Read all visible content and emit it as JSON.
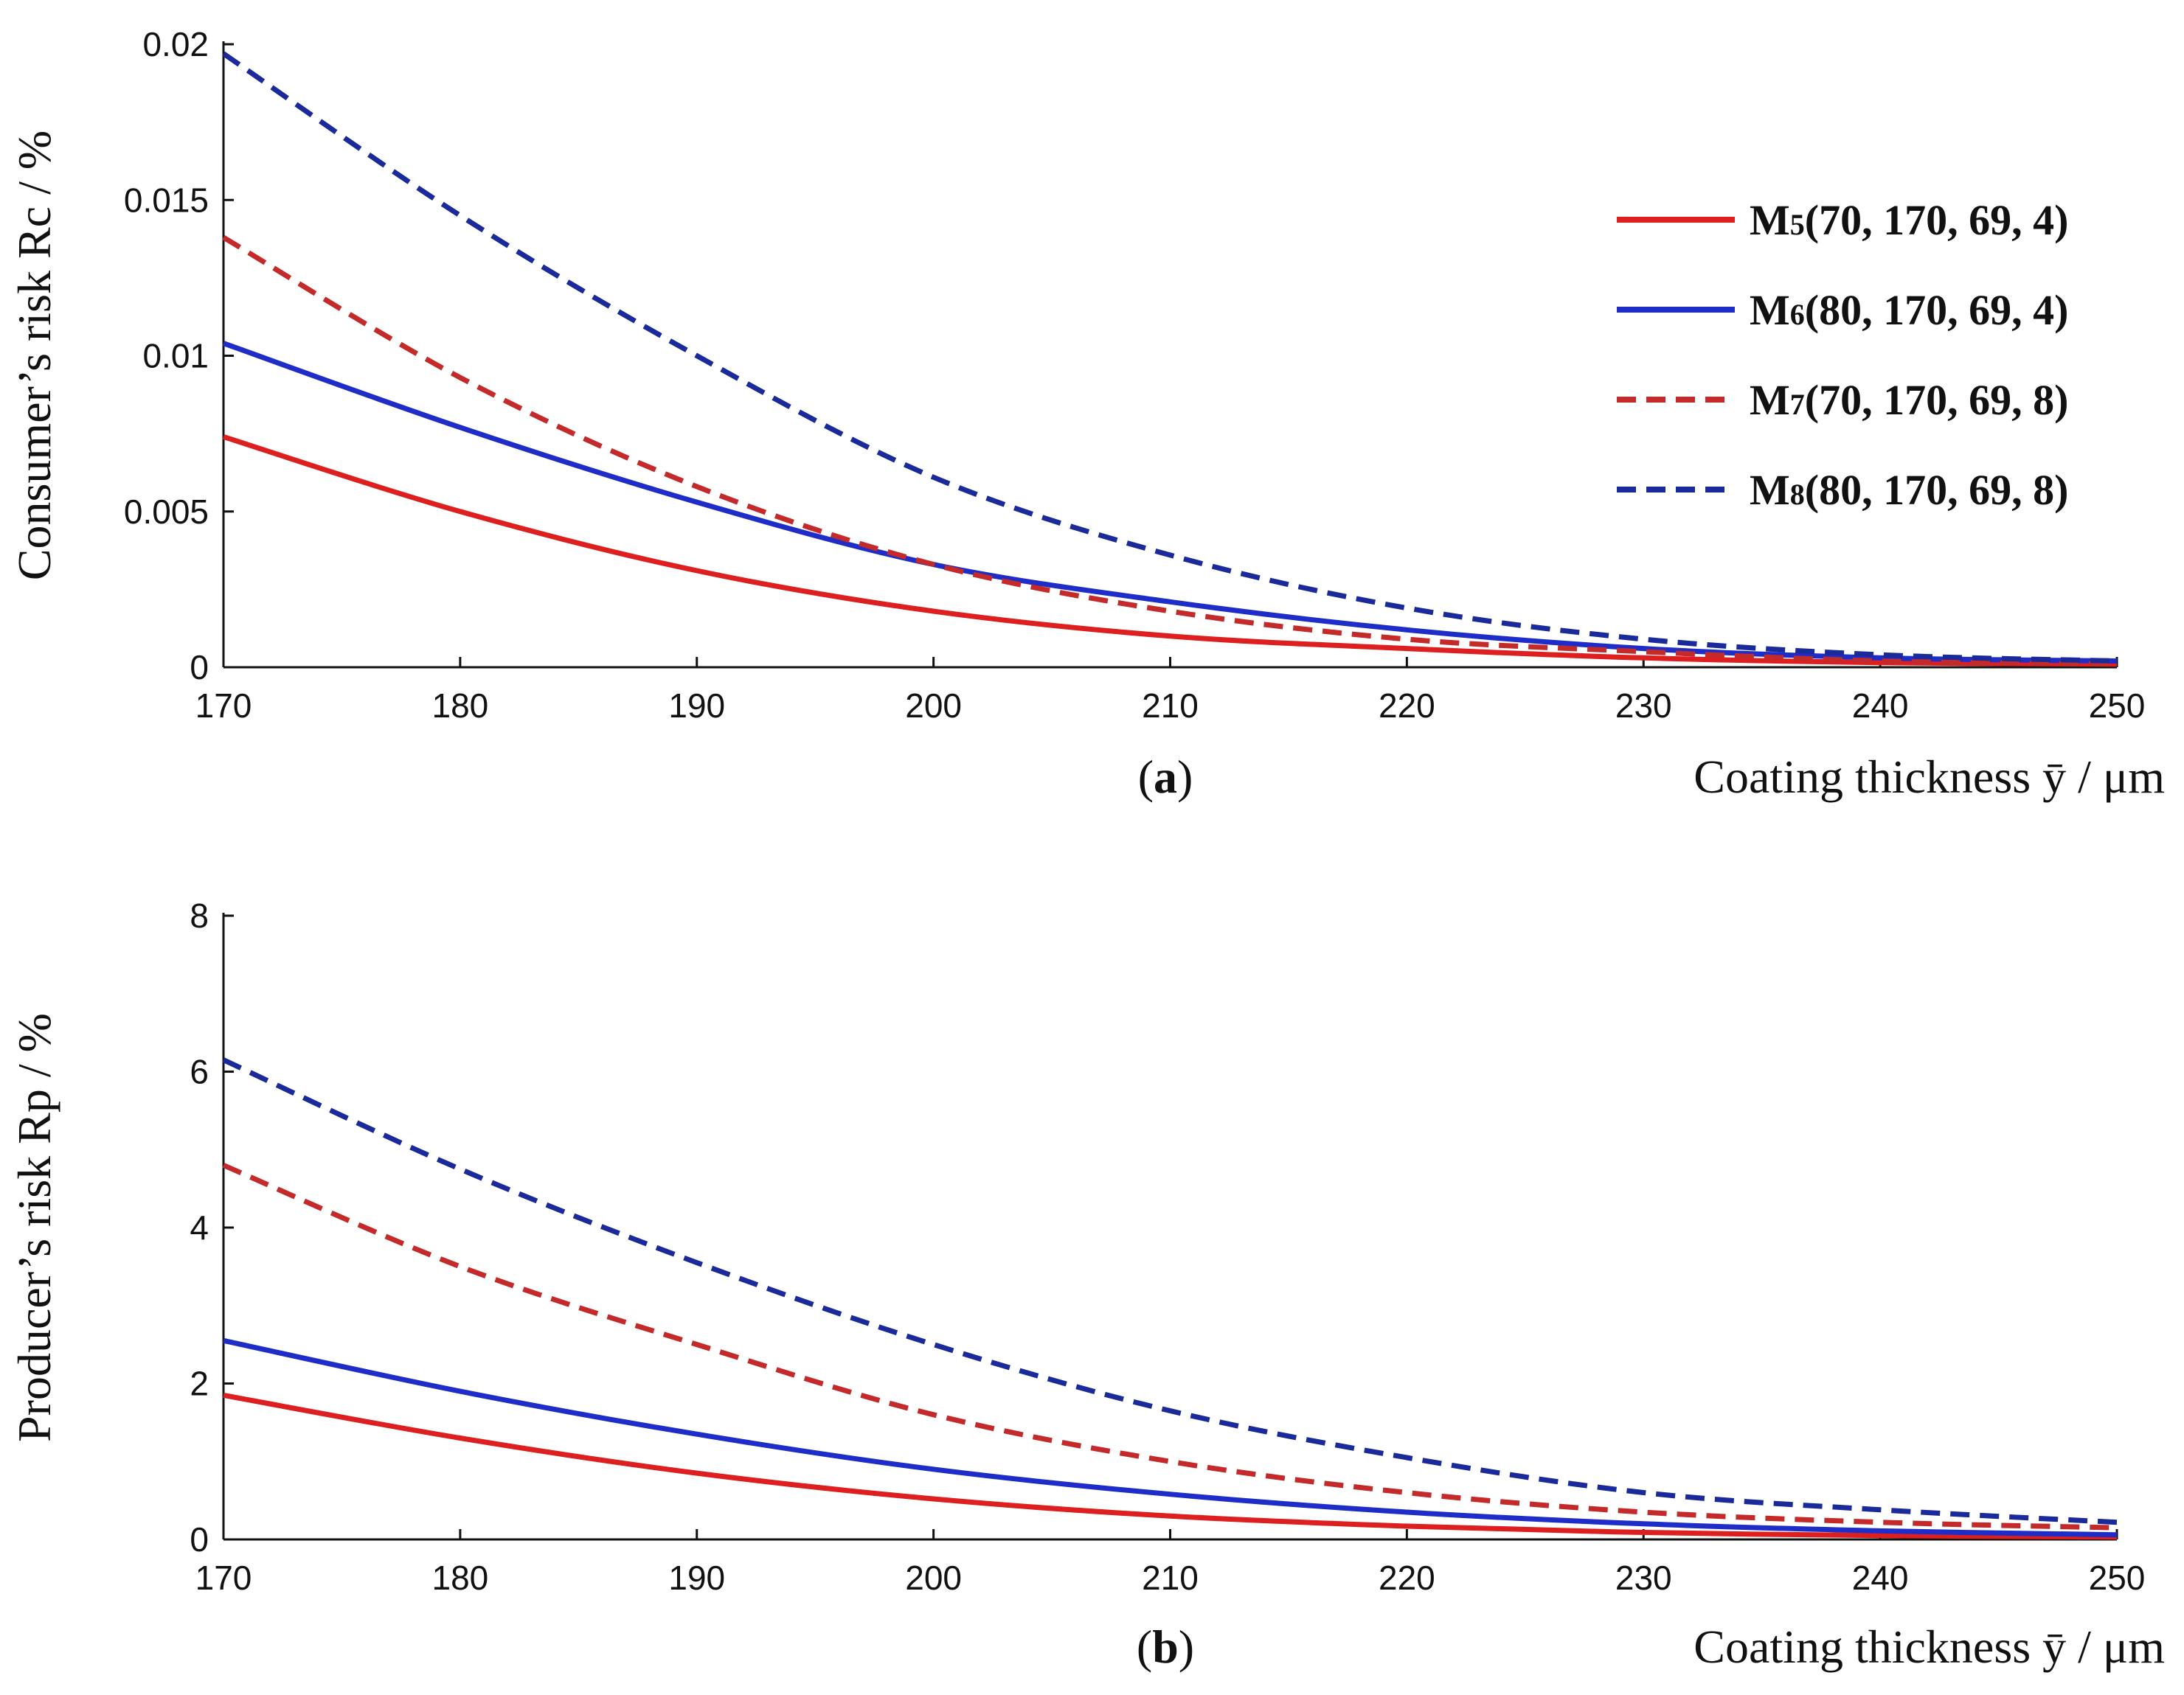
{
  "chart_data": [
    {
      "type": "line",
      "panel": "a",
      "panel_label": "a",
      "xlabel": "Coating thickness ȳ / μm",
      "ylabel": "Consumer’s  risk Rc / %",
      "xlim": [
        170,
        250
      ],
      "ylim": [
        0,
        0.02
      ],
      "x_ticks": [
        170,
        180,
        190,
        200,
        210,
        220,
        230,
        240,
        250
      ],
      "y_ticks": [
        0,
        0.005,
        0.01,
        0.015,
        0.02
      ],
      "y_tick_labels": [
        "0",
        "0.005",
        "0.01",
        "0.015",
        "0.02"
      ],
      "x": [
        170,
        180,
        190,
        200,
        210,
        220,
        230,
        240,
        250
      ],
      "series": [
        {
          "name": "M5(70, 170, 69, 4)",
          "color": "#dd1f1f",
          "dash": "solid",
          "values": [
            0.0074,
            0.005,
            0.0031,
            0.0018,
            0.001,
            0.0006,
            0.0003,
            0.00015,
            0.0001
          ]
        },
        {
          "name": "M6(80, 170, 69, 4)",
          "color": "#1f2dc8",
          "dash": "solid",
          "values": [
            0.0104,
            0.0077,
            0.0053,
            0.0033,
            0.0021,
            0.0012,
            0.0006,
            0.0003,
            0.0002
          ]
        },
        {
          "name": "M7(70, 170, 69, 8)",
          "color": "#c42a2a",
          "dash": "dashed",
          "values": [
            0.0138,
            0.0093,
            0.0058,
            0.0033,
            0.0018,
            0.0009,
            0.0005,
            0.0002,
            0.0001
          ]
        },
        {
          "name": "M8(80, 170, 69, 8)",
          "color": "#1a2a9a",
          "dash": "dashed",
          "values": [
            0.0197,
            0.0145,
            0.01,
            0.0061,
            0.0036,
            0.0019,
            0.0009,
            0.0004,
            0.0002
          ]
        }
      ]
    },
    {
      "type": "line",
      "panel": "b",
      "panel_label": "b",
      "xlabel": "Coating thickness ȳ / μm",
      "ylabel": "Producer’s  risk Rp / %",
      "xlim": [
        170,
        250
      ],
      "ylim": [
        0,
        8
      ],
      "x_ticks": [
        170,
        180,
        190,
        200,
        210,
        220,
        230,
        240,
        250
      ],
      "y_ticks": [
        0,
        2,
        4,
        6,
        8
      ],
      "y_tick_labels": [
        "0",
        "2",
        "4",
        "6",
        "8"
      ],
      "x": [
        170,
        180,
        190,
        200,
        210,
        220,
        230,
        240,
        250
      ],
      "series": [
        {
          "name": "M5(70, 170, 69, 4)",
          "color": "#dd1f1f",
          "dash": "solid",
          "values": [
            1.85,
            1.3,
            0.85,
            0.52,
            0.3,
            0.17,
            0.09,
            0.05,
            0.03
          ]
        },
        {
          "name": "M6(80, 170, 69, 4)",
          "color": "#1f2dc8",
          "dash": "solid",
          "values": [
            2.55,
            1.9,
            1.35,
            0.9,
            0.58,
            0.35,
            0.2,
            0.11,
            0.06
          ]
        },
        {
          "name": "M7(70, 170, 69, 8)",
          "color": "#c42a2a",
          "dash": "dashed",
          "values": [
            4.8,
            3.5,
            2.5,
            1.6,
            1.0,
            0.6,
            0.35,
            0.22,
            0.15
          ]
        },
        {
          "name": "M8(80, 170, 69, 8)",
          "color": "#1a2a9a",
          "dash": "dashed",
          "values": [
            6.15,
            4.75,
            3.55,
            2.5,
            1.65,
            1.05,
            0.6,
            0.38,
            0.22
          ]
        }
      ]
    }
  ],
  "legend": {
    "placement": "top-right of panel a",
    "entries": [
      {
        "label": "M5(70, 170, 69, 4)",
        "prefix": "M",
        "sub": "5",
        "rest": "(70, 170, 69, 4)",
        "color": "#dd1f1f",
        "dash": "solid"
      },
      {
        "label": "M6(80, 170, 69, 4)",
        "prefix": "M",
        "sub": "6",
        "rest": "(80, 170, 69, 4)",
        "color": "#1f2dc8",
        "dash": "solid"
      },
      {
        "label": "M7(70, 170, 69, 8)",
        "prefix": "M",
        "sub": "7",
        "rest": "(70, 170, 69, 8)",
        "color": "#c42a2a",
        "dash": "dashed"
      },
      {
        "label": "M8(80, 170, 69, 8)",
        "prefix": "M",
        "sub": "8",
        "rest": "(80, 170, 69, 8)",
        "color": "#1a2a9a",
        "dash": "dashed"
      }
    ]
  }
}
